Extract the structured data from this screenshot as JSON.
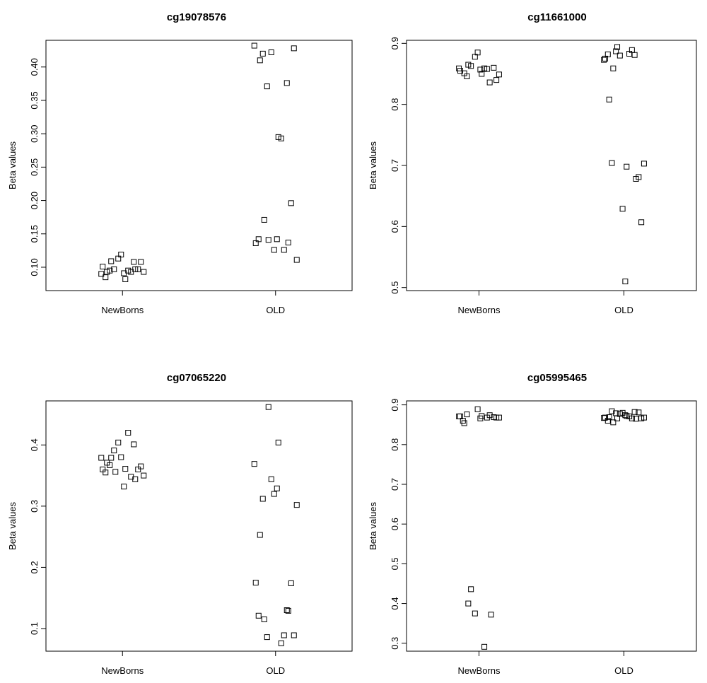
{
  "figure_background": "#ffffff",
  "chart_data": [
    {
      "type": "scatter",
      "title": "cg19078576",
      "xlabel": "",
      "ylabel": "Beta values",
      "categories": [
        "NewBorns",
        "OLD"
      ],
      "ylim": [
        0.065,
        0.44
      ],
      "yticks": [
        0.1,
        0.15,
        0.2,
        0.25,
        0.3,
        0.35,
        0.4
      ],
      "ytick_labels": [
        "0.10",
        "0.15",
        "0.20",
        "0.25",
        "0.30",
        "0.35",
        "0.40"
      ],
      "grid": false,
      "legend": "none",
      "marker": "open-square",
      "series": [
        {
          "values": [
            0.09,
            0.097,
            0.095,
            0.093,
            0.082,
            0.095,
            0.108,
            0.113,
            0.108,
            0.101,
            0.093,
            0.119,
            0.097,
            0.109,
            0.093,
            0.091,
            0.085,
            0.097
          ]
        },
        {
          "values": [
            0.432,
            0.371,
            0.293,
            0.41,
            0.295,
            0.42,
            0.428,
            0.422,
            0.376,
            0.136,
            0.126,
            0.126,
            0.196,
            0.171,
            0.111,
            0.142,
            0.142,
            0.137,
            0.141
          ]
        }
      ]
    },
    {
      "type": "scatter",
      "title": "cg11661000",
      "xlabel": "",
      "ylabel": "Beta values",
      "categories": [
        "NewBorns",
        "OLD"
      ],
      "ylim": [
        0.495,
        0.905
      ],
      "yticks": [
        0.5,
        0.6,
        0.7,
        0.8,
        0.9
      ],
      "ytick_labels": [
        "0.5",
        "0.6",
        "0.7",
        "0.8",
        "0.9"
      ],
      "grid": false,
      "legend": "none",
      "marker": "open-square",
      "series": [
        {
          "values": [
            0.859,
            0.863,
            0.859,
            0.851,
            0.85,
            0.846,
            0.84,
            0.878,
            0.836,
            0.855,
            0.858,
            0.885,
            0.86,
            0.865,
            0.849,
            0.857
          ]
        },
        {
          "values": [
            0.873,
            0.887,
            0.883,
            0.808,
            0.698,
            0.704,
            0.607,
            0.88,
            0.881,
            0.875,
            0.889,
            0.629,
            0.681,
            0.859,
            0.703,
            0.51,
            0.882,
            0.678,
            0.894
          ]
        }
      ]
    },
    {
      "type": "scatter",
      "title": "cg07065220",
      "xlabel": "",
      "ylabel": "Beta values",
      "categories": [
        "NewBorns",
        "OLD"
      ],
      "ylim": [
        0.063,
        0.472
      ],
      "yticks": [
        0.1,
        0.2,
        0.3,
        0.4
      ],
      "ytick_labels": [
        "0.1",
        "0.2",
        "0.3",
        "0.4"
      ],
      "grid": false,
      "legend": "none",
      "marker": "open-square",
      "series": [
        {
          "values": [
            0.379,
            0.391,
            0.42,
            0.371,
            0.361,
            0.367,
            0.365,
            0.404,
            0.401,
            0.36,
            0.348,
            0.38,
            0.36,
            0.379,
            0.35,
            0.332,
            0.355,
            0.344,
            0.356
          ]
        },
        {
          "values": [
            0.369,
            0.086,
            0.076,
            0.253,
            0.404,
            0.312,
            0.089,
            0.344,
            0.13,
            0.175,
            0.089,
            0.32,
            0.174,
            0.115,
            0.302,
            0.329,
            0.121,
            0.129,
            0.462
          ]
        }
      ]
    },
    {
      "type": "scatter",
      "title": "cg05995465",
      "xlabel": "",
      "ylabel": "Beta values",
      "categories": [
        "NewBorns",
        "OLD"
      ],
      "ylim": [
        0.28,
        0.91
      ],
      "yticks": [
        0.3,
        0.4,
        0.5,
        0.6,
        0.7,
        0.8,
        0.9
      ],
      "ytick_labels": [
        "0.3",
        "0.4",
        "0.5",
        "0.6",
        "0.7",
        "0.8",
        "0.9"
      ],
      "grid": false,
      "legend": "none",
      "marker": "open-square",
      "series": [
        {
          "values": [
            0.871,
            0.436,
            0.291,
            0.854,
            0.872,
            0.876,
            0.868,
            0.375,
            0.874,
            0.871,
            0.868,
            0.889,
            0.869,
            0.4,
            0.868,
            0.866,
            0.86,
            0.372
          ]
        },
        {
          "values": [
            0.867,
            0.879,
            0.871,
            0.869,
            0.872,
            0.884,
            0.866,
            0.877,
            0.882,
            0.868,
            0.866,
            0.88,
            0.881,
            0.856,
            0.868,
            0.874,
            0.86,
            0.865,
            0.866
          ]
        }
      ]
    }
  ]
}
